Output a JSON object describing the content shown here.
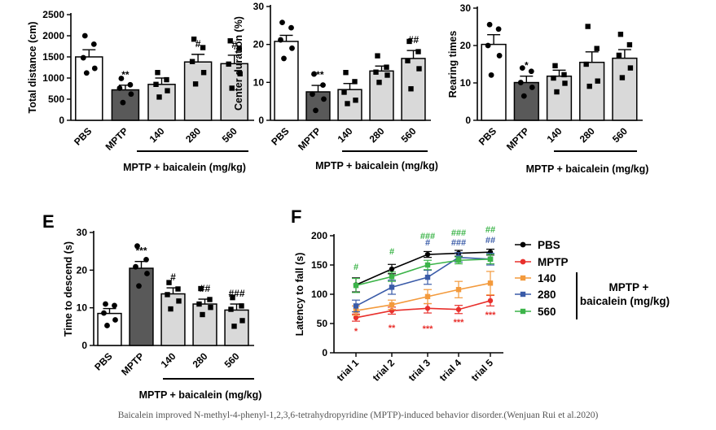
{
  "caption": "Baicalein improved N-methyl-4-phenyl-1,2,3,6-tetrahydropyridine (MPTP)-induced behavior disorder.(Wenjuan Rui et al.2020)",
  "colors": {
    "pbs": "#ffffff",
    "mptp": "#595959",
    "treat": "#d9d9d9",
    "stroke": "#000000"
  },
  "chart_data": [
    {
      "type": "bar",
      "panel_label": "",
      "title": "",
      "ylabel": "Total distance (cm)",
      "xlabel": "",
      "ylim": [
        0,
        2500
      ],
      "yticks": [
        0,
        500,
        1000,
        1500,
        2000,
        2500
      ],
      "categories": [
        "PBS",
        "MPTP",
        "140",
        "280",
        "560"
      ],
      "values": [
        1500,
        720,
        850,
        1380,
        1340
      ],
      "errors": [
        170,
        110,
        150,
        180,
        200
      ],
      "points": [
        [
          2000,
          1800,
          1480,
          1230,
          1120
        ],
        [
          990,
          840,
          760,
          620,
          420
        ],
        [
          1130,
          960,
          850,
          700,
          550
        ],
        [
          1920,
          1720,
          1390,
          1130,
          860
        ],
        [
          1880,
          1700,
          1330,
          1100,
          760
        ]
      ],
      "significance": [
        "",
        "**",
        "",
        "#",
        "#"
      ],
      "group_label": "MPTP + baicalein (mg/kg)"
    },
    {
      "type": "bar",
      "panel_label": "",
      "title": "",
      "ylabel": "Center duration (%)",
      "xlabel": "",
      "ylim": [
        0,
        30
      ],
      "yticks": [
        0,
        10,
        20,
        30
      ],
      "categories": [
        "PBS",
        "MPTP",
        "140",
        "280",
        "560"
      ],
      "values": [
        20.8,
        7.5,
        8.1,
        13.0,
        16.3
      ],
      "errors": [
        1.6,
        1.7,
        1.6,
        1.3,
        2.1
      ],
      "points": [
        [
          25.8,
          24.4,
          21.2,
          19.0,
          16.3
        ],
        [
          12.2,
          9.3,
          6.9,
          5.6,
          2.6
        ],
        [
          12.6,
          10.2,
          7.4,
          5.3,
          4.4
        ],
        [
          17.0,
          14.0,
          12.7,
          11.9,
          10.0
        ],
        [
          20.8,
          18.1,
          15.7,
          13.6,
          8.3
        ]
      ],
      "significance": [
        "",
        "***",
        "",
        "",
        "##"
      ],
      "group_label": "MPTP + baicalein (mg/kg)"
    },
    {
      "type": "bar",
      "panel_label": "",
      "title": "",
      "ylabel": "Rearing times",
      "xlabel": "",
      "ylim": [
        0,
        30
      ],
      "yticks": [
        0,
        10,
        20,
        30
      ],
      "categories": [
        "PBS",
        "MPTP",
        "140",
        "280",
        "560"
      ],
      "values": [
        20.3,
        10.1,
        11.8,
        15.5,
        16.6
      ],
      "errors": [
        2.6,
        1.7,
        1.6,
        2.8,
        2.3
      ],
      "points": [
        [
          25.6,
          24.4,
          20.0,
          17.3,
          12.1
        ],
        [
          14.0,
          13.1,
          10.1,
          8.8,
          6.5
        ],
        [
          14.6,
          12.2,
          11.3,
          9.9,
          7.6
        ],
        [
          25.1,
          19.2,
          15.0,
          10.5,
          9.1
        ],
        [
          23.0,
          20.2,
          17.4,
          14.0,
          11.4
        ]
      ],
      "significance": [
        "",
        "*",
        "",
        "",
        ""
      ],
      "group_label": "MPTP + baicalein (mg/kg)"
    },
    {
      "type": "bar",
      "panel_label": "E",
      "title": "",
      "ylabel": "Time to descend (s)",
      "xlabel": "",
      "ylim": [
        0,
        30
      ],
      "yticks": [
        0,
        10,
        20,
        30
      ],
      "categories": [
        "PBS",
        "MPTP",
        "140",
        "280",
        "560"
      ],
      "values": [
        8.5,
        20.5,
        13.7,
        11.0,
        9.4
      ],
      "errors": [
        1.3,
        1.8,
        1.6,
        1.3,
        1.6
      ],
      "points": [
        [
          11.0,
          10.6,
          8.6,
          6.8,
          5.3
        ],
        [
          26.4,
          22.8,
          20.9,
          19.1,
          15.8
        ],
        [
          16.7,
          15.0,
          13.5,
          11.8,
          9.7
        ],
        [
          15.1,
          12.2,
          11.0,
          10.1,
          8.2
        ],
        [
          12.7,
          10.5,
          9.6,
          6.6,
          5.1
        ]
      ],
      "significance": [
        "",
        "***",
        "#",
        "##",
        "###"
      ],
      "group_label": "MPTP + baicalein (mg/kg)"
    },
    {
      "type": "line",
      "panel_label": "F",
      "title": "",
      "ylabel": "Latency to fall (s)",
      "xlabel": "",
      "ylim": [
        0,
        200
      ],
      "yticks": [
        0,
        50,
        100,
        150,
        200
      ],
      "categories": [
        "trial 1",
        "trial 2",
        "trial 3",
        "trial 4",
        "trial 5"
      ],
      "series": [
        {
          "name": "PBS",
          "color": "#000000",
          "marker": "circle",
          "values": [
            116,
            143,
            168,
            170,
            172
          ],
          "errors": [
            12,
            8,
            5,
            5,
            5
          ]
        },
        {
          "name": "MPTP",
          "color": "#e8302c",
          "marker": "circle",
          "values": [
            60,
            72,
            76,
            74,
            89
          ],
          "errors": [
            6,
            6,
            8,
            7,
            9
          ]
        },
        {
          "name": "140",
          "color": "#f39a3c",
          "marker": "square",
          "values": [
            72,
            82,
            96,
            108,
            119
          ],
          "errors": [
            8,
            8,
            12,
            14,
            20
          ]
        },
        {
          "name": "280",
          "color": "#3a5ba8",
          "marker": "square",
          "values": [
            80,
            112,
            129,
            163,
            160
          ],
          "errors": [
            10,
            12,
            12,
            8,
            10
          ]
        },
        {
          "name": "560",
          "color": "#3cb449",
          "marker": "square",
          "values": [
            115,
            130,
            150,
            158,
            160
          ],
          "errors": [
            12,
            8,
            8,
            6,
            8
          ]
        }
      ],
      "annotations": {
        "mptp": [
          "*",
          "**",
          "***",
          "***",
          "***"
        ],
        "b280": [
          "",
          "",
          "#",
          "###",
          "##"
        ],
        "b560": [
          "#",
          "#",
          "###",
          "###",
          "##"
        ]
      },
      "legend_group_label_line1": "MPTP +",
      "legend_group_label_line2": "baicalein (mg/kg)",
      "legend_position": "right"
    }
  ]
}
